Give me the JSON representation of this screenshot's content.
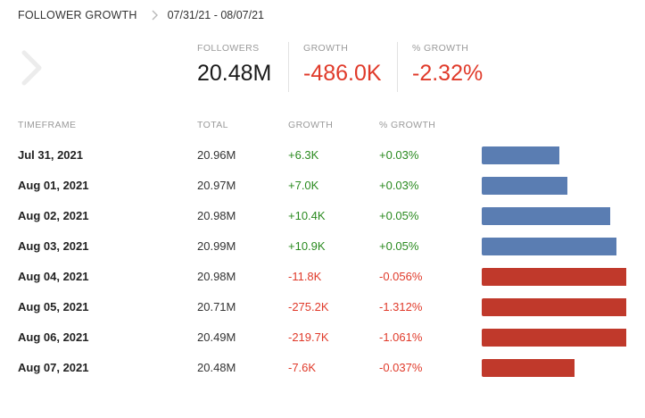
{
  "header": {
    "title": "FOLLOWER GROWTH",
    "date_range": "07/31/21 - 08/07/21"
  },
  "stats": [
    {
      "label": "FOLLOWERS",
      "value": "20.48M",
      "color": "#1a1a1a"
    },
    {
      "label": "GROWTH",
      "value": "-486.0K",
      "color": "#e03a2a"
    },
    {
      "label": "% GROWTH",
      "value": "-2.32%",
      "color": "#e03a2a"
    }
  ],
  "table": {
    "columns": [
      "TIMEFRAME",
      "TOTAL",
      "GROWTH",
      "% GROWTH"
    ],
    "rows": [
      {
        "date": "Jul 31, 2021",
        "total": "20.96M",
        "growth": "+6.3K",
        "pct": "+0.03%",
        "trend": "positive",
        "bar_fraction": 0.54
      },
      {
        "date": "Aug 01, 2021",
        "total": "20.97M",
        "growth": "+7.0K",
        "pct": "+0.03%",
        "trend": "positive",
        "bar_fraction": 0.59
      },
      {
        "date": "Aug 02, 2021",
        "total": "20.98M",
        "growth": "+10.4K",
        "pct": "+0.05%",
        "trend": "positive",
        "bar_fraction": 0.89
      },
      {
        "date": "Aug 03, 2021",
        "total": "20.99M",
        "growth": "+10.9K",
        "pct": "+0.05%",
        "trend": "positive",
        "bar_fraction": 0.93
      },
      {
        "date": "Aug 04, 2021",
        "total": "20.98M",
        "growth": "-11.8K",
        "pct": "-0.056%",
        "trend": "negative",
        "bar_fraction": 1.0
      },
      {
        "date": "Aug 05, 2021",
        "total": "20.71M",
        "growth": "-275.2K",
        "pct": "-1.312%",
        "trend": "negative",
        "bar_fraction": 1.0
      },
      {
        "date": "Aug 06, 2021",
        "total": "20.49M",
        "growth": "-219.7K",
        "pct": "-1.061%",
        "trend": "negative",
        "bar_fraction": 1.0
      },
      {
        "date": "Aug 07, 2021",
        "total": "20.48M",
        "growth": "-7.6K",
        "pct": "-0.037%",
        "trend": "negative",
        "bar_fraction": 0.64
      }
    ]
  },
  "colors": {
    "positive_text": "#2a8a1f",
    "negative_text": "#e03a2a",
    "positive_bar": "#5a7db2",
    "negative_bar": "#c0392b"
  },
  "icons": {
    "breadcrumb": "chevron-right-icon",
    "navigation": "chevron-right-large-icon"
  }
}
